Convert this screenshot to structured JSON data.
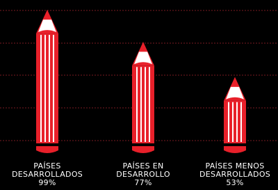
{
  "chart_data": {
    "type": "pencil-bar",
    "categories": [
      "PAÍSES DESARROLLADOS",
      "PAÍSES EN DESARROLLO",
      "PAÍSES MENOS DESARROLLADOS"
    ],
    "values": [
      99,
      77,
      53
    ],
    "value_labels": [
      "99%",
      "77%",
      "53%"
    ],
    "color": "#e8202a",
    "ylim": [
      0,
      100
    ],
    "grid": true
  }
}
